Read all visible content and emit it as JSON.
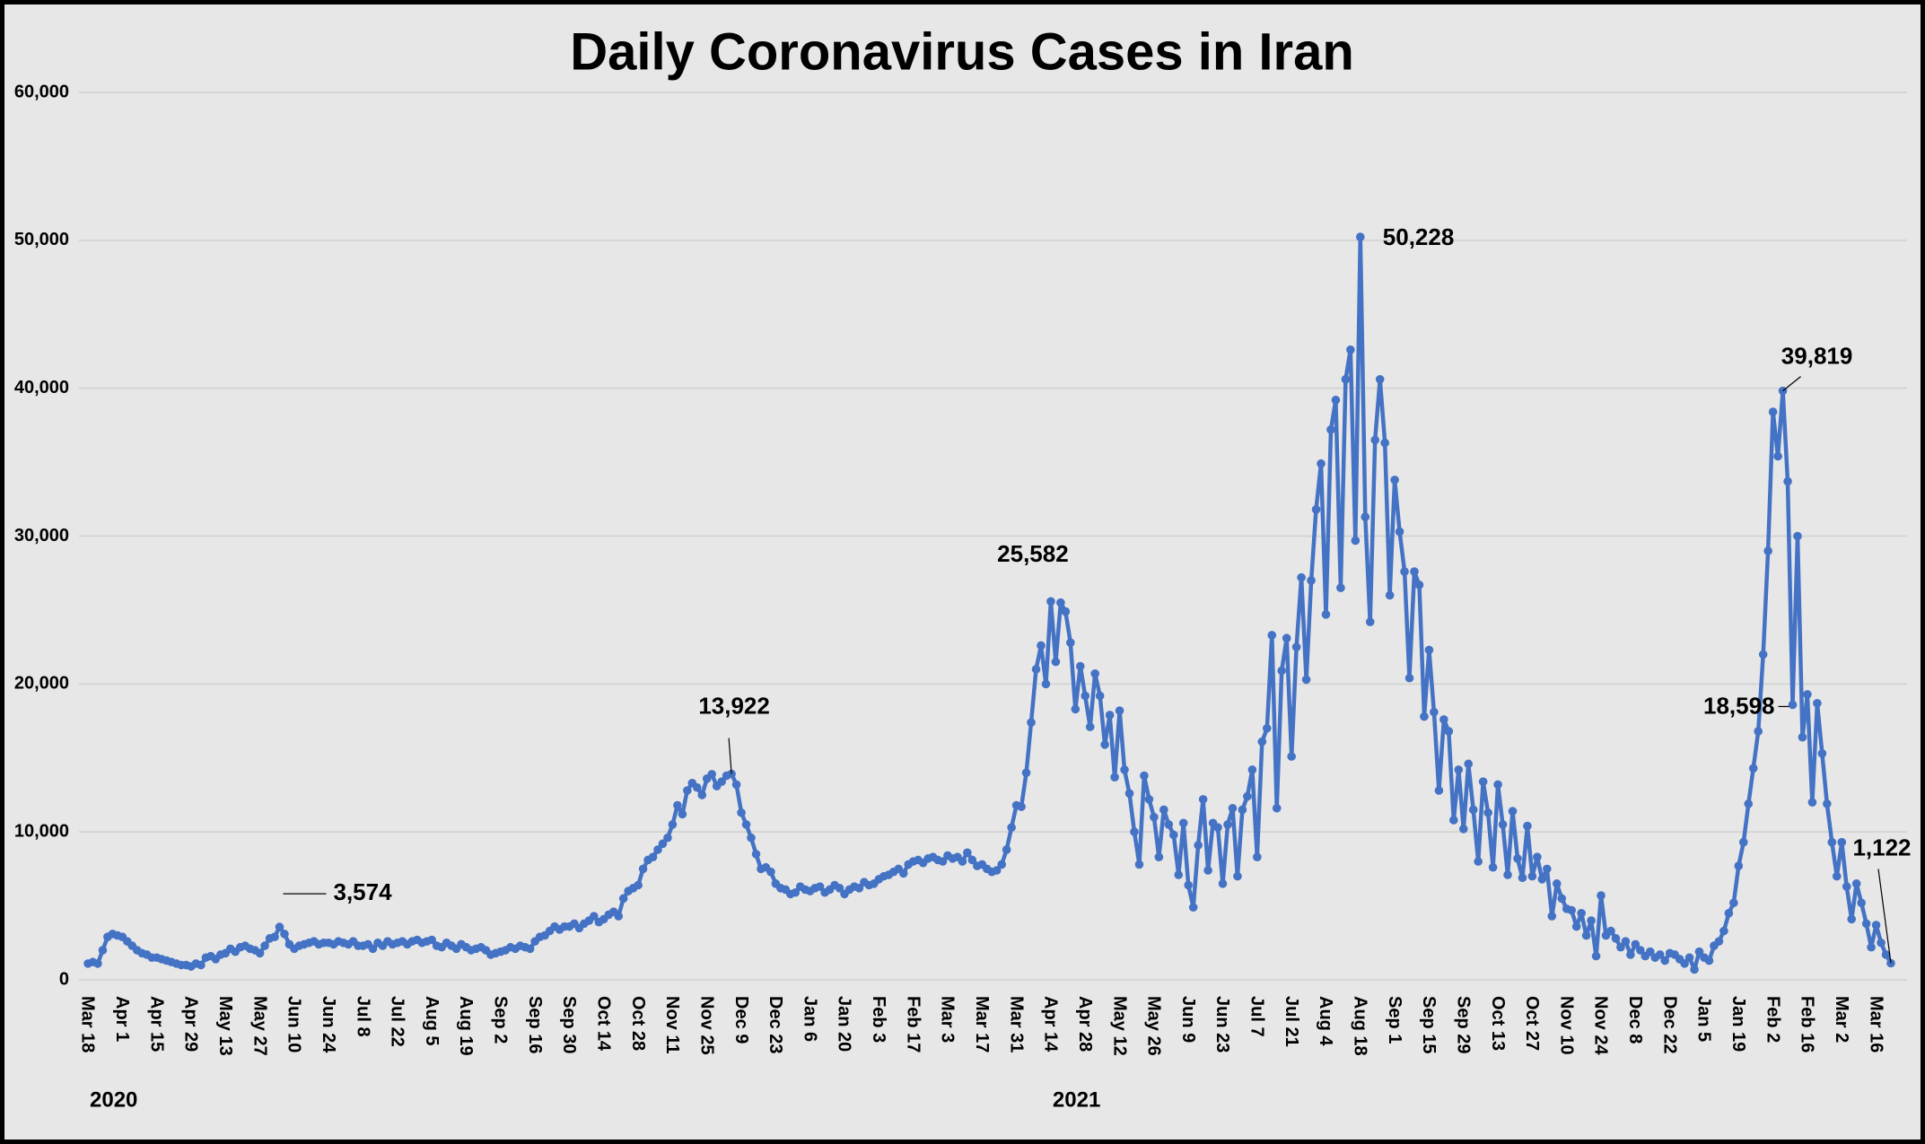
{
  "chart_data": {
    "type": "line",
    "title": "Daily Coronavirus Cases in Iran",
    "color": "#4472c4",
    "grid": true,
    "ylim": [
      0,
      60000
    ],
    "yticks": [
      0,
      {
        "value": 10000,
        "label": "10,000"
      },
      {
        "value": 20000,
        "label": "20,000"
      },
      {
        "value": 30000,
        "label": "30,000"
      },
      {
        "value": 40000,
        "label": "40,000"
      },
      {
        "value": 50000,
        "label": "50,000"
      },
      {
        "value": 60000,
        "label": "60,000"
      }
    ],
    "year_labels": [
      {
        "text": "2020",
        "at": "Mar 18"
      },
      {
        "text": "2021",
        "at": "Apr 14"
      }
    ],
    "categories": [
      "Mar 18",
      null,
      null,
      null,
      null,
      null,
      null,
      "Apr 1",
      null,
      null,
      null,
      null,
      null,
      null,
      "Apr 15",
      null,
      null,
      null,
      null,
      null,
      null,
      "Apr 29",
      null,
      null,
      null,
      null,
      null,
      null,
      "May 13",
      null,
      null,
      null,
      null,
      null,
      null,
      "May 27",
      null,
      null,
      null,
      null,
      null,
      null,
      "Jun 10",
      null,
      null,
      null,
      null,
      null,
      null,
      "Jun 24",
      null,
      null,
      null,
      null,
      null,
      null,
      "Jul 8",
      null,
      null,
      null,
      null,
      null,
      null,
      "Jul 22",
      null,
      null,
      null,
      null,
      null,
      null,
      "Aug 5",
      null,
      null,
      null,
      null,
      null,
      null,
      "Aug 19",
      null,
      null,
      null,
      null,
      null,
      null,
      "Sep 2",
      null,
      null,
      null,
      null,
      null,
      null,
      "Sep 16",
      null,
      null,
      null,
      null,
      null,
      null,
      "Sep 30",
      null,
      null,
      null,
      null,
      null,
      null,
      "Oct 14",
      null,
      null,
      null,
      null,
      null,
      null,
      "Oct 28",
      null,
      null,
      null,
      null,
      null,
      null,
      "Nov 11",
      null,
      null,
      null,
      null,
      null,
      null,
      "Nov 25",
      null,
      null,
      null,
      null,
      null,
      null,
      "Dec 9",
      null,
      null,
      null,
      null,
      null,
      null,
      "Dec 23",
      null,
      null,
      null,
      null,
      null,
      null,
      "Jan 6",
      null,
      null,
      null,
      null,
      null,
      null,
      "Jan 20",
      null,
      null,
      null,
      null,
      null,
      null,
      "Feb 3",
      null,
      null,
      null,
      null,
      null,
      null,
      "Feb 17",
      null,
      null,
      null,
      null,
      null,
      null,
      "Mar 3",
      null,
      null,
      null,
      null,
      null,
      null,
      "Mar 17",
      null,
      null,
      null,
      null,
      null,
      null,
      "Mar 31",
      null,
      null,
      null,
      null,
      null,
      null,
      "Apr 14",
      null,
      null,
      null,
      null,
      null,
      null,
      "Apr 28",
      null,
      null,
      null,
      null,
      null,
      null,
      "May 12",
      null,
      null,
      null,
      null,
      null,
      null,
      "May 26",
      null,
      null,
      null,
      null,
      null,
      null,
      "Jun 9",
      null,
      null,
      null,
      null,
      null,
      null,
      "Jun 23",
      null,
      null,
      null,
      null,
      null,
      null,
      "Jul 7",
      null,
      null,
      null,
      null,
      null,
      null,
      "Jul 21",
      null,
      null,
      null,
      null,
      null,
      null,
      "Aug 4",
      null,
      null,
      null,
      null,
      null,
      null,
      "Aug 18",
      null,
      null,
      null,
      null,
      null,
      null,
      "Sep 1",
      null,
      null,
      null,
      null,
      null,
      null,
      "Sep 15",
      null,
      null,
      null,
      null,
      null,
      null,
      "Sep 29",
      null,
      null,
      null,
      null,
      null,
      null,
      "Oct 13",
      null,
      null,
      null,
      null,
      null,
      null,
      "Oct 27",
      null,
      null,
      null,
      null,
      null,
      null,
      "Nov 10",
      null,
      null,
      null,
      null,
      null,
      null,
      "Nov 24",
      null,
      null,
      null,
      null,
      null,
      null,
      "Dec 8",
      null,
      null,
      null,
      null,
      null,
      null,
      "Dec 22",
      null,
      null,
      null,
      null,
      null,
      null,
      "Jan 5",
      null,
      null,
      null,
      null,
      null,
      null,
      "Jan 19",
      null,
      null,
      null,
      null,
      null,
      null,
      "Feb 2",
      null,
      null,
      null,
      null,
      null,
      null,
      "Feb 16",
      null,
      null,
      null,
      null,
      null,
      null,
      "Mar 2",
      null,
      null,
      null,
      null,
      null,
      null,
      "Mar 16",
      null,
      null,
      null
    ],
    "values": [
      1100,
      1200,
      1100,
      2000,
      2900,
      3100,
      3000,
      2900,
      2600,
      2300,
      2000,
      1800,
      1700,
      1500,
      1500,
      1400,
      1300,
      1200,
      1100,
      1000,
      1000,
      900,
      1100,
      1000,
      1500,
      1600,
      1400,
      1700,
      1800,
      2100,
      1900,
      2200,
      2300,
      2100,
      2000,
      1800,
      2300,
      2800,
      2900,
      3574,
      3100,
      2400,
      2100,
      2300,
      2400,
      2500,
      2600,
      2400,
      2500,
      2500,
      2400,
      2600,
      2500,
      2400,
      2600,
      2300,
      2300,
      2400,
      2100,
      2500,
      2300,
      2600,
      2400,
      2500,
      2600,
      2400,
      2600,
      2700,
      2500,
      2600,
      2700,
      2300,
      2200,
      2500,
      2300,
      2100,
      2400,
      2200,
      2000,
      2100,
      2200,
      2000,
      1700,
      1800,
      1900,
      2000,
      2200,
      2100,
      2300,
      2200,
      2100,
      2600,
      2900,
      3000,
      3300,
      3600,
      3400,
      3600,
      3600,
      3800,
      3500,
      3800,
      4000,
      4300,
      3900,
      4100,
      4400,
      4600,
      4300,
      5500,
      6000,
      6200,
      6400,
      7500,
      8100,
      8300,
      8800,
      9200,
      9600,
      10500,
      11800,
      11200,
      12800,
      13300,
      13000,
      12500,
      13600,
      13900,
      13100,
      13400,
      13800,
      13922,
      13200,
      11300,
      10500,
      9600,
      8500,
      7500,
      7600,
      7300,
      6500,
      6200,
      6100,
      5800,
      5900,
      6300,
      6100,
      6000,
      6200,
      6300,
      5900,
      6100,
      6400,
      6200,
      5800,
      6100,
      6300,
      6200,
      6600,
      6400,
      6500,
      6800,
      7000,
      7100,
      7300,
      7500,
      7200,
      7800,
      8000,
      8100,
      7900,
      8200,
      8300,
      8100,
      8000,
      8400,
      8200,
      8300,
      8000,
      8600,
      8100,
      7700,
      7800,
      7500,
      7300,
      7400,
      7800,
      8800,
      10300,
      11800,
      11700,
      14000,
      17400,
      21000,
      22600,
      20000,
      25582,
      21500,
      25500,
      24900,
      22800,
      18300,
      21200,
      19200,
      17100,
      20700,
      19200,
      15900,
      17900,
      13700,
      18200,
      14200,
      12600,
      10000,
      7800,
      13800,
      12200,
      11000,
      8300,
      11500,
      10500,
      9800,
      7100,
      10600,
      6400,
      4900,
      9100,
      12200,
      7400,
      10600,
      10300,
      6500,
      10500,
      11600,
      7000,
      11500,
      12400,
      14200,
      8300,
      16100,
      17000,
      23300,
      11600,
      20900,
      23100,
      15100,
      22500,
      27200,
      20300,
      27000,
      31800,
      34900,
      24700,
      37200,
      39200,
      26500,
      40600,
      42600,
      29700,
      50228,
      31300,
      24200,
      36500,
      40600,
      36300,
      26000,
      33800,
      30300,
      27600,
      20400,
      27600,
      26700,
      17800,
      22300,
      18100,
      12800,
      17600,
      16800,
      10800,
      14200,
      10200,
      14600,
      11500,
      8000,
      13400,
      11300,
      7600,
      13200,
      10500,
      7100,
      11400,
      8200,
      6900,
      10400,
      7000,
      8300,
      6800,
      7500,
      4300,
      6500,
      5500,
      4800,
      4700,
      3600,
      4500,
      3000,
      4000,
      1600,
      5700,
      3000,
      3300,
      2800,
      2200,
      2600,
      1700,
      2400,
      2000,
      1600,
      1900,
      1500,
      1700,
      1300,
      1800,
      1700,
      1400,
      1100,
      1500,
      700,
      1900,
      1500,
      1300,
      2300,
      2600,
      3300,
      4500,
      5200,
      7700,
      9300,
      11900,
      14300,
      16800,
      22000,
      29000,
      38400,
      35400,
      39819,
      33700,
      18598,
      30000,
      16400,
      19300,
      12000,
      18700,
      15300,
      11900,
      9300,
      7000,
      9300,
      6300,
      4100,
      6500,
      5200,
      3800,
      2200,
      3700,
      2500,
      1700,
      1122
    ],
    "value_labels": [
      null,
      null,
      null,
      null,
      null,
      null,
      null,
      null,
      null,
      null,
      null,
      null,
      null,
      null,
      null,
      null,
      null,
      null,
      null,
      null,
      null,
      null,
      null,
      null,
      null,
      null,
      null,
      null,
      null,
      null,
      null,
      null,
      null,
      null,
      null,
      null,
      null,
      null,
      null,
      "3,574",
      null,
      null,
      null,
      null,
      null,
      null,
      null,
      null,
      null,
      null,
      null,
      null,
      null,
      null,
      null,
      null,
      null,
      null,
      null,
      null,
      null,
      null,
      null,
      null,
      null,
      null,
      null,
      null,
      null,
      null,
      null,
      null,
      null,
      null,
      null,
      null,
      null,
      null,
      null,
      null,
      null,
      null,
      null,
      null,
      null,
      null,
      null,
      null,
      null,
      null,
      null,
      null,
      null,
      null,
      null,
      null,
      null,
      null,
      null,
      null,
      null,
      null,
      null,
      null,
      null,
      null,
      null,
      null,
      null,
      null,
      null,
      null,
      null,
      null,
      null,
      null,
      null,
      null,
      null,
      null,
      null,
      null,
      null,
      null,
      null,
      null,
      null,
      null,
      null,
      null,
      null,
      "13,922",
      null,
      null,
      null,
      null,
      null,
      null,
      null,
      null,
      null,
      null,
      null,
      null,
      null,
      null,
      null,
      null,
      null,
      null,
      null,
      null,
      null,
      null,
      null,
      null,
      null,
      null,
      null,
      null,
      null,
      null,
      null,
      null,
      null,
      null,
      null,
      null,
      null,
      null,
      null,
      null,
      null,
      null,
      null,
      null,
      null,
      null,
      null,
      null,
      null,
      null,
      null,
      null,
      null,
      null,
      null,
      null,
      null,
      null,
      null,
      null,
      null,
      null,
      null,
      null,
      "25,582",
      null,
      null,
      null,
      null,
      null,
      null,
      null,
      null,
      null,
      null,
      null,
      null,
      null,
      null,
      null,
      null,
      null,
      null,
      null,
      null,
      null,
      null,
      null,
      null,
      null,
      null,
      null,
      null,
      null,
      null,
      null,
      null,
      null,
      null,
      null,
      null,
      null,
      null,
      null,
      null,
      null,
      null,
      null,
      null,
      null,
      null,
      null,
      null,
      null,
      null,
      null,
      null,
      null,
      null,
      null,
      null,
      null,
      null,
      null,
      null,
      null,
      null,
      "50,228",
      null,
      null,
      null,
      null,
      null,
      null,
      null,
      null,
      null,
      null,
      null,
      null,
      null,
      null,
      null,
      null,
      null,
      null,
      null,
      null,
      null,
      null,
      null,
      null,
      null,
      null,
      null,
      null,
      null,
      null,
      null,
      null,
      null,
      null,
      null,
      null,
      null,
      null,
      null,
      null,
      null,
      null,
      null,
      null,
      null,
      null,
      null,
      null,
      null,
      null,
      null,
      null,
      null,
      null,
      null,
      null,
      null,
      null,
      null,
      null,
      null,
      null,
      null,
      null,
      null,
      null,
      null,
      null,
      null,
      null,
      null,
      null,
      null,
      null,
      null,
      null,
      null,
      null,
      null,
      null,
      null,
      null,
      null,
      null,
      null,
      "39,819",
      null,
      "18,598",
      null,
      null,
      null,
      null,
      null,
      null,
      null,
      null,
      null,
      null,
      null,
      null,
      null,
      null,
      null,
      null,
      null,
      null,
      null,
      "1,122"
    ]
  }
}
